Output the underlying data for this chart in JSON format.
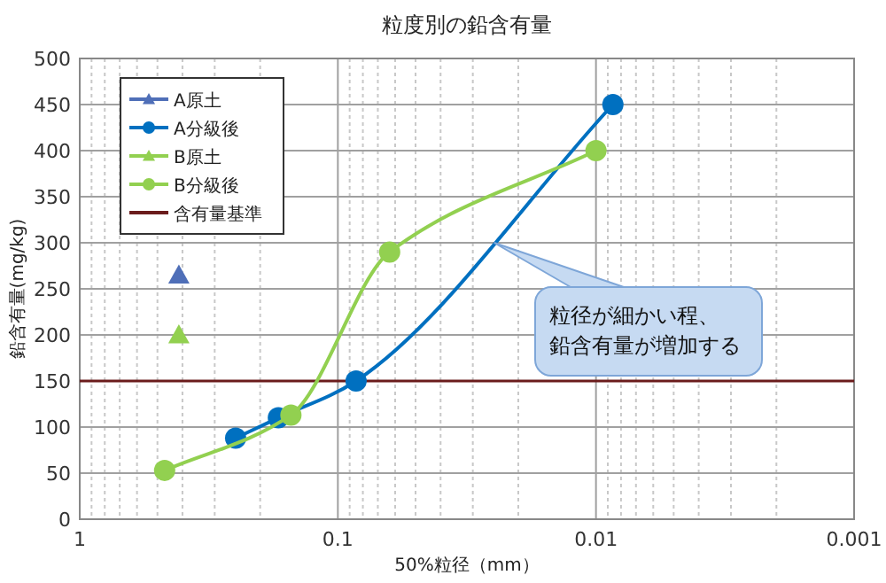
{
  "chart_data": {
    "type": "line",
    "title": "粒度別の鉛含有量",
    "xlabel": "50%粒径（mm）",
    "ylabel": "鉛含有量(mg/kg)",
    "log": "x",
    "xlim": [
      1,
      0.001
    ],
    "xticks": [
      1,
      0.1,
      0.01,
      0.001
    ],
    "ylim": [
      0,
      500
    ],
    "yticks": [
      0,
      50,
      100,
      150,
      200,
      250,
      300,
      350,
      400,
      450,
      500
    ],
    "grid": true,
    "legend": "top left",
    "series": [
      {
        "name": "A原土",
        "type": "scatter",
        "marker": "triangle",
        "color": "#4f6fb8",
        "x": [
          0.413
        ],
        "values": [
          265
        ]
      },
      {
        "name": "A分級後",
        "marker": "circle",
        "color": "#0070c0",
        "x": [
          0.249,
          0.17,
          0.085,
          0.0086
        ],
        "values": [
          88,
          110,
          150,
          450
        ]
      },
      {
        "name": "B原土",
        "type": "scatter",
        "marker": "triangle",
        "color": "#92d050",
        "x": [
          0.413
        ],
        "values": [
          200
        ]
      },
      {
        "name": "B分級後",
        "marker": "circle",
        "color": "#92d050",
        "x": [
          0.469,
          0.152,
          0.063,
          0.01
        ],
        "values": [
          53,
          113,
          290,
          400
        ]
      }
    ],
    "ref_lines": [
      {
        "axis": "y",
        "value": 150,
        "label": "含有量基準",
        "color": "#6b1c1c"
      }
    ],
    "annotations": [
      {
        "text": "粒径が細かい程、鉛含有量が増加する",
        "x": 0.0248,
        "y": 300
      }
    ]
  }
}
